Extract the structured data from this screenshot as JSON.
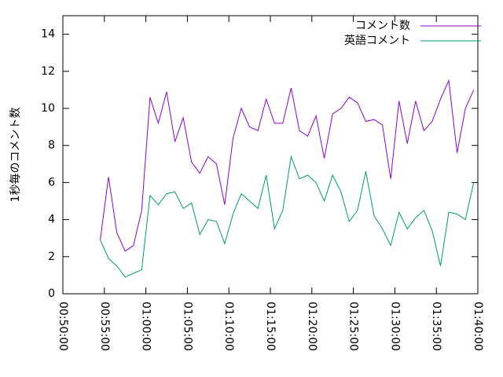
{
  "chart_data": {
    "type": "line",
    "ylabel": "1秒毎のコメント数",
    "x": [
      "00:54:30",
      "00:55:30",
      "00:56:30",
      "00:57:30",
      "00:58:30",
      "00:59:30",
      "01:00:30",
      "01:01:30",
      "01:02:30",
      "01:03:30",
      "01:04:30",
      "01:05:30",
      "01:06:30",
      "01:07:30",
      "01:08:30",
      "01:09:30",
      "01:10:30",
      "01:11:30",
      "01:12:30",
      "01:13:30",
      "01:14:30",
      "01:15:30",
      "01:16:30",
      "01:17:30",
      "01:18:30",
      "01:19:30",
      "01:20:30",
      "01:21:30",
      "01:22:30",
      "01:23:30",
      "01:24:30",
      "01:25:30",
      "01:26:30",
      "01:27:30",
      "01:28:30",
      "01:29:30",
      "01:30:30",
      "01:31:30",
      "01:32:30",
      "01:33:30",
      "01:34:30",
      "01:35:30",
      "01:36:30",
      "01:37:30",
      "01:38:30",
      "01:39:30"
    ],
    "series": [
      {
        "name": "コメント数",
        "color": "#9400d3",
        "values": [
          2.9,
          6.3,
          3.3,
          2.3,
          2.6,
          4.5,
          10.6,
          9.2,
          10.9,
          8.2,
          9.5,
          7.1,
          6.5,
          7.4,
          7.0,
          4.8,
          8.4,
          10.0,
          9.0,
          8.8,
          10.5,
          9.2,
          9.2,
          11.1,
          8.8,
          8.5,
          9.6,
          7.3,
          9.7,
          10.0,
          10.6,
          10.3,
          9.3,
          9.4,
          9.1,
          6.2,
          10.4,
          8.1,
          10.4,
          8.8,
          9.3,
          10.5,
          11.5,
          7.6,
          10.0,
          11.0
        ]
      },
      {
        "name": "英語コメント",
        "color": "#009e73",
        "values": [
          2.9,
          1.9,
          1.5,
          0.9,
          1.1,
          1.3,
          5.3,
          4.8,
          5.4,
          5.5,
          4.6,
          4.9,
          3.2,
          4.0,
          3.9,
          2.7,
          4.3,
          5.4,
          5.0,
          4.6,
          6.4,
          3.5,
          4.5,
          7.4,
          6.2,
          6.4,
          6.0,
          5.0,
          6.4,
          5.5,
          3.9,
          4.5,
          6.6,
          4.2,
          3.5,
          2.6,
          4.4,
          3.5,
          4.1,
          4.5,
          3.4,
          1.5,
          4.4,
          4.3,
          4.0,
          6.0
        ]
      }
    ],
    "xlim": [
      "00:50:00",
      "01:40:00"
    ],
    "xticks": [
      "00:50:00",
      "00:55:00",
      "01:00:00",
      "01:05:00",
      "01:10:00",
      "01:15:00",
      "01:20:00",
      "01:25:00",
      "01:30:00",
      "01:35:00",
      "01:40:00"
    ],
    "ylim": [
      0,
      15
    ],
    "yticks": [
      0,
      2,
      4,
      6,
      8,
      10,
      12,
      14
    ],
    "legend": "top-right"
  }
}
